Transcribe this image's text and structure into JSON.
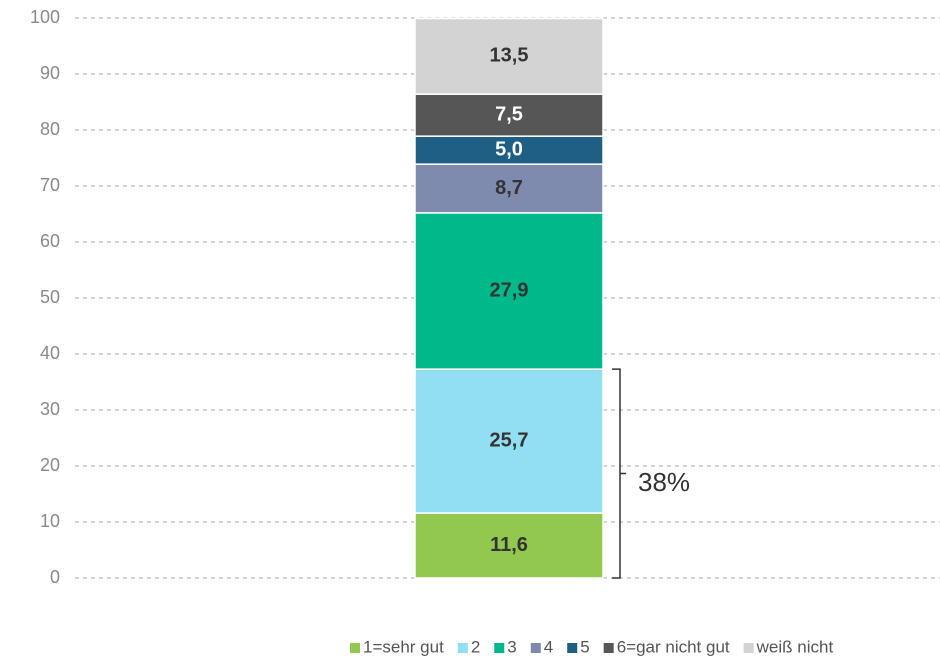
{
  "chart_data": {
    "type": "stacked_bar",
    "categories": [
      null
    ],
    "series": [
      {
        "name": "1=sehr gut",
        "color": "#92c850",
        "label_color": "#333333",
        "values": [
          11.6
        ],
        "value_labels": [
          "11,6"
        ]
      },
      {
        "name": "2",
        "color": "#92def2",
        "label_color": "#333333",
        "values": [
          25.7
        ],
        "value_labels": [
          "25,7"
        ]
      },
      {
        "name": "3",
        "color": "#00b88a",
        "label_color": "#333333",
        "values": [
          27.9
        ],
        "value_labels": [
          "27,9"
        ]
      },
      {
        "name": "4",
        "color": "#7e8aae",
        "label_color": "#333333",
        "values": [
          8.7
        ],
        "value_labels": [
          "8,7"
        ]
      },
      {
        "name": "5",
        "color": "#1f5f86",
        "label_color": "#ffffff",
        "values": [
          5.0
        ],
        "value_labels": [
          "5,0"
        ]
      },
      {
        "name": "6=gar nicht gut",
        "color": "#565656",
        "label_color": "#ffffff",
        "values": [
          7.5
        ],
        "value_labels": [
          "7,5"
        ]
      },
      {
        "name": "weiß nicht",
        "color": "#d3d3d3",
        "label_color": "#333333",
        "values": [
          13.5
        ],
        "value_labels": [
          "13,5"
        ]
      }
    ],
    "ylim": [
      0,
      100
    ],
    "yticks": [
      0,
      10,
      20,
      30,
      40,
      50,
      60,
      70,
      80,
      90,
      100
    ],
    "grid": true,
    "annotation": "38%",
    "legend": "bottom"
  }
}
